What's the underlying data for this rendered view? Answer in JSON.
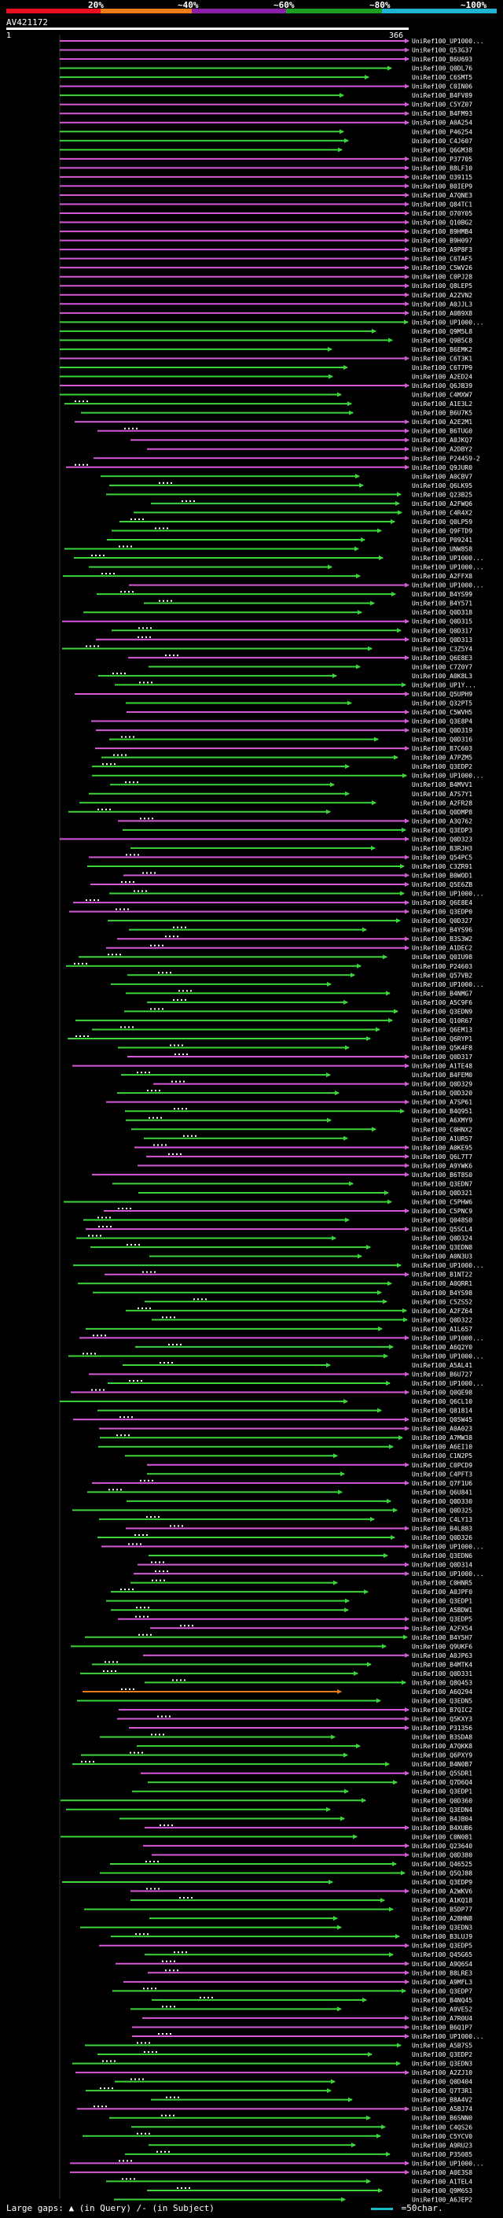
{
  "scale": {
    "labels": [
      "20%",
      "~40%",
      "~60%",
      "~80%",
      "~100%"
    ],
    "colors": [
      "#e8101e",
      "#ef7a1a",
      "#8c1fa8",
      "#1e9e1e",
      "#1fb4d2"
    ]
  },
  "query": {
    "name": "AV421172",
    "start": "1",
    "end": "366"
  },
  "hit_colors": {
    "green": "#3cd63c",
    "magenta": "#d65ad6",
    "orange": "#e87a18",
    "cyan": "#34b8e0"
  },
  "hits": [
    "UniRef100_UP1000...",
    "UniRef100_Q53G37",
    "UniRef100_B6U693",
    "UniRef100_Q0DL76",
    "UniRef100_C6SMT5",
    "UniRef100_C0IN06",
    "UniRef100_B4FV89",
    "UniRef100_C5YZ07",
    "UniRef100_B4FM93",
    "UniRef100_A0A254",
    "UniRef100_P46254",
    "UniRef100_C4J607",
    "UniRef100_Q6GM38",
    "UniRef100_P37705",
    "UniRef100_B8LF10",
    "UniRef100_O39115",
    "UniRef100_B0IEP9",
    "UniRef100_A7QNE3",
    "UniRef100_Q84TC1",
    "UniRef100_O70Y05",
    "UniRef100_Q10BG2",
    "UniRef100_B9HMB4",
    "UniRef100_B9H097",
    "UniRef100_A9P8F3",
    "UniRef100_C6TAF5",
    "UniRef100_C5WV26",
    "UniRef100_C0PJ28",
    "UniRef100_Q8LEP5",
    "UniRef100_A2ZVN2",
    "UniRef100_A0JJL3",
    "UniRef100_A0B9X8",
    "UniRef100_UP1000...",
    "UniRef100_Q9M5L8",
    "UniRef100_Q9B5C8",
    "UniRef100_B6EMK2",
    "UniRef100_C6T3K1",
    "UniRef100_C6T7P9",
    "UniRef100_A2ED24",
    "UniRef100_Q6JB39",
    "UniRef100_C4MXW7",
    "UniRef100_A1E3L2",
    "UniRef100_B6U7K5",
    "UniRef100_A2E2M1",
    "UniRef100_B6TUG0",
    "UniRef100_A0JKQ7",
    "UniRef100_A2DBY2",
    "UniRef100_P24459-2",
    "UniRef100_Q9JUR0",
    "UniRef100_A0CBV7",
    "UniRef100_Q6LK95",
    "UniRef100_Q23B25",
    "UniRef100_A2FWQ6",
    "UniRef100_C4R4X2",
    "UniRef100_Q0LP59",
    "UniRef100_Q9FTD9",
    "UniRef100_P09241",
    "UniRef100_UNW858",
    "UniRef100_UP1000...",
    "UniRef100_UP1000...",
    "UniRef100_A2FFX8",
    "UniRef100_UP1000...",
    "UniRef100_B4YS99",
    "UniRef100_B4Y571",
    "UniRef100_Q0D318",
    "UniRef100_Q0D315",
    "UniRef100_Q0D317",
    "UniRef100_Q0D313",
    "UniRef100_C3Z5Y4",
    "UniRef100_Q6E8E3",
    "UniRef100_C7Z0Y7",
    "UniRef100_A0K8L3",
    "UniRef100_UP1Y...",
    "UniRef100_Q5UPH9",
    "UniRef100_Q32PT5",
    "UniRef100_C5WVH5",
    "UniRef100_Q3E8P4",
    "UniRef100_Q0D319",
    "UniRef100_Q0D316",
    "UniRef100_B7C603",
    "UniRef100_A7PZM5",
    "UniRef100_Q3EDP2",
    "UniRef100_UP1000...",
    "UniRef100_B4MVV1",
    "UniRef100_A7S7Y1",
    "UniRef100_A2FR28",
    "UniRef100_Q0DMP8",
    "UniRef100_A3Q762",
    "UniRef100_Q3EDP3",
    "UniRef100_Q0D323",
    "UniRef100_B3RJH3",
    "UniRef100_Q54PC5",
    "UniRef100_C3ZR91",
    "UniRef100_B0WOD1",
    "UniRef100_Q5E6ZB",
    "UniRef100_UP1000...",
    "UniRef100_Q6E8E4",
    "UniRef100_Q3EDP0",
    "UniRef100_Q0D327",
    "UniRef100_B4YS96",
    "UniRef100_B3S3W2",
    "UniRef100_A1DEC2",
    "UniRef100_Q0IU98",
    "UniRef100_P24603",
    "UniRef100_Q57VB2",
    "UniRef100_UP1000...",
    "UniRef100_B4NMG7",
    "UniRef100_A5C9F6",
    "UniRef100_Q3EDN9",
    "UniRef100_Q10R67",
    "UniRef100_Q6EM13",
    "UniRef100_Q6RYP1",
    "UniRef100_Q5K4F8",
    "UniRef100_Q0D317",
    "UniRef100_A1TE48",
    "UniRef100_B4FEM0",
    "UniRef100_Q0D329",
    "UniRef100_Q0D320",
    "UniRef100_A7SP61",
    "UniRef100_B4Q951",
    "UniRef100_A6XMY9",
    "UniRef100_C0HNX2",
    "UniRef100_A1UR57",
    "UniRef100_A0KE95",
    "UniRef100_Q6L7T7",
    "UniRef100_A9YWK6",
    "UniRef100_B6T8S0",
    "UniRef100_Q3EDN7",
    "UniRef100_Q0D321",
    "UniRef100_C5PHW6",
    "UniRef100_C5PNC9",
    "UniRef100_Q048S0",
    "UniRef100_Q5SCL4",
    "UniRef100_Q0D324",
    "UniRef100_Q3EDN8",
    "UniRef100_A0N3U3",
    "UniRef100_UP1000...",
    "UniRef100_B1NT22",
    "UniRef100_A0QRR1",
    "UniRef100_B4YS98",
    "UniRef100_C5ZS52",
    "UniRef100_A2FZ64",
    "UniRef100_Q0D322",
    "UniRef100_A1L657",
    "UniRef100_UP1000...",
    "UniRef100_A6Q2Y0",
    "UniRef100_UP1000...",
    "UniRef100_A5AL41",
    "UniRef100_B6U727",
    "UniRef100_UP1000...",
    "UniRef100_Q0QE98",
    "UniRef100_Q6CL10",
    "UniRef100_Q81814",
    "UniRef100_Q05W45",
    "UniRef100_A0A023",
    "UniRef100_A7MW38",
    "UniRef100_A6EI10",
    "UniRef100_C1N2P5",
    "UniRef100_C0PCD9",
    "UniRef100_C4PFT3",
    "UniRef100_Q7F1U6",
    "UniRef100_Q6U841",
    "UniRef100_Q0D330",
    "UniRef100_Q0D325",
    "UniRef100_C4LY13",
    "UniRef100_B4L883",
    "UniRef100_Q0D326",
    "UniRef100_UP1000...",
    "UniRef100_Q3EDN6",
    "UniRef100_Q0D314",
    "UniRef100_UP1000...",
    "UniRef100_C0HNR5",
    "UniRef100_A0JPF0",
    "UniRef100_Q3EDP1",
    "UniRef100_A5BDW1",
    "UniRef100_Q3EDP5",
    "UniRef100_A2FX54",
    "UniRef100_B4Y5H7",
    "UniRef100_Q9UKF6",
    "UniRef100_A0JP63",
    "UniRef100_B4MTK4",
    "UniRef100_Q0D331",
    "UniRef100_Q8Q453",
    "UniRef100_A6Q294",
    "UniRef100_Q3EDN5",
    "UniRef100_B7QIC2",
    "UniRef100_Q5KXY3",
    "UniRef100_P31356",
    "UniRef100_B3SDA8",
    "UniRef100_A7QKK8",
    "UniRef100_Q6PXY9",
    "UniRef100_B4N0B7",
    "UniRef100_Q5SDR1",
    "UniRef100_Q7D6Q4",
    "UniRef100_Q3EDP1",
    "UniRef100_Q0D360",
    "UniRef100_Q3EDN4",
    "UniRef100_B4JB04",
    "UniRef100_B4XUB6",
    "UniRef100_C0N081",
    "UniRef100_Q23640",
    "UniRef100_Q0D380",
    "UniRef100_Q46525",
    "UniRef100_Q5QJ88",
    "UniRef100_Q3EDP9",
    "UniRef100_A2WKV6",
    "UniRef100_A1KQ18",
    "UniRef100_B5DP77",
    "UniRef100_A2BHN8",
    "UniRef100_Q3EDN3",
    "UniRef100_B3LUJ9",
    "UniRef100_Q3EDP5",
    "UniRef100_Q45G65",
    "UniRef100_A9Q6S4",
    "UniRef100_B8LRE3",
    "UniRef100_A9MFL3",
    "UniRef100_Q3EDP7",
    "UniRef100_B4NQ45",
    "UniRef100_A9VE52",
    "UniRef100_A7R0U4",
    "UniRef100_B6Q1P7",
    "UniRef100_UP1000...",
    "UniRef100_A5B7S5",
    "UniRef100_Q3EDP2",
    "UniRef100_Q3EDN3",
    "UniRef100_A2ZJ10",
    "UniRef100_Q0D404",
    "UniRef100_Q7T3R1",
    "UniRef100_B8A4V2",
    "UniRef100_A5BJ74",
    "UniRef100_B6SNN0",
    "UniRef100_C4QS26",
    "UniRef100_C5YCV0",
    "UniRef100_A9RU23",
    "UniRef100_P35085",
    "UniRef100_UP1000...",
    "UniRef100_A0E3S8",
    "UniRef100_A1TEL4",
    "UniRef100_Q9M6S3",
    "UniRef100_A6JEP2"
  ],
  "footer": {
    "large_gaps": "Large gaps:",
    "in_query": "(in Query)",
    "in_subject": "/- (in Subject)",
    "legend_50char": "=50char."
  }
}
